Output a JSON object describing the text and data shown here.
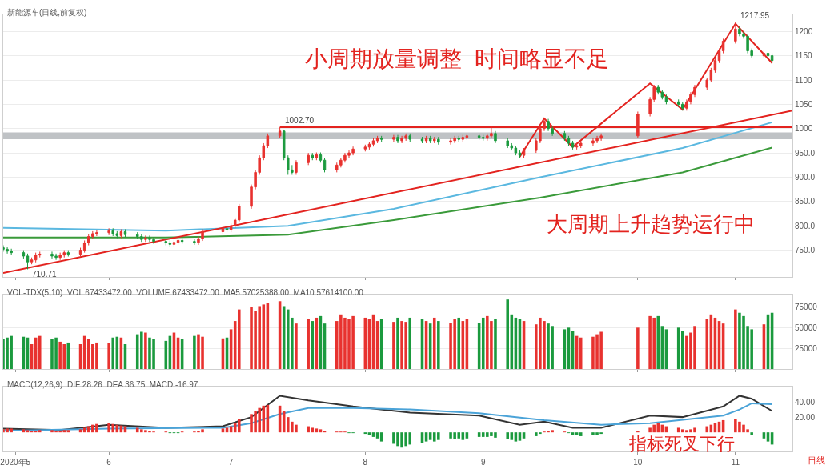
{
  "chart_data": [
    {
      "type": "candlestick",
      "title": "新能源车(日线,前复权)",
      "x": [
        "2020-05-06",
        "2020-05-07",
        "2020-05-08",
        "2020-05-11",
        "2020-05-12",
        "2020-05-13",
        "2020-05-14",
        "2020-05-15",
        "2020-05-18",
        "2020-05-19",
        "2020-05-20",
        "2020-05-21",
        "2020-05-22",
        "2020-05-25",
        "2020-05-26",
        "2020-05-27",
        "2020-05-28",
        "2020-05-29",
        "2020-06-01",
        "2020-06-02",
        "2020-06-03",
        "2020-06-04",
        "2020-06-05",
        "2020-06-08",
        "2020-06-09",
        "2020-06-10",
        "2020-06-11",
        "2020-06-12",
        "2020-06-15",
        "2020-06-16",
        "2020-06-17",
        "2020-06-18",
        "2020-06-19",
        "2020-06-22",
        "2020-06-23",
        "2020-06-24",
        "2020-06-29",
        "2020-06-30",
        "2020-07-01",
        "2020-07-02",
        "2020-07-03",
        "2020-07-06",
        "2020-07-07",
        "2020-07-08",
        "2020-07-09",
        "2020-07-10",
        "2020-07-13",
        "2020-07-14",
        "2020-07-15",
        "2020-07-16",
        "2020-07-17",
        "2020-07-20",
        "2020-07-21",
        "2020-07-22",
        "2020-07-23",
        "2020-07-24",
        "2020-07-27",
        "2020-07-28",
        "2020-07-29",
        "2020-07-30",
        "2020-07-31",
        "2020-08-03",
        "2020-08-04",
        "2020-08-05",
        "2020-08-06",
        "2020-08-07",
        "2020-08-10",
        "2020-08-11",
        "2020-08-12",
        "2020-08-13",
        "2020-08-14",
        "2020-08-17",
        "2020-08-18",
        "2020-08-19",
        "2020-08-20",
        "2020-08-21",
        "2020-08-24",
        "2020-08-25",
        "2020-08-26",
        "2020-08-27",
        "2020-08-28",
        "2020-08-31",
        "2020-09-01",
        "2020-09-02",
        "2020-09-03",
        "2020-09-04",
        "2020-09-07",
        "2020-09-08",
        "2020-09-09",
        "2020-09-10",
        "2020-09-11",
        "2020-09-14",
        "2020-09-15",
        "2020-09-16",
        "2020-09-17",
        "2020-09-18",
        "2020-09-21",
        "2020-09-22",
        "2020-09-23",
        "2020-09-24",
        "2020-09-25",
        "2020-09-28",
        "2020-09-29",
        "2020-09-30",
        "2020-10-09",
        "2020-10-12",
        "2020-10-13",
        "2020-10-14",
        "2020-10-15",
        "2020-10-16",
        "2020-10-19",
        "2020-10-20",
        "2020-10-21",
        "2020-10-22",
        "2020-10-23",
        "2020-10-26",
        "2020-10-27",
        "2020-10-28",
        "2020-10-29",
        "2020-10-30",
        "2020-11-02",
        "2020-11-03",
        "2020-11-04",
        "2020-11-05",
        "2020-11-06",
        "2020-11-09",
        "2020-11-10",
        "2020-11-11"
      ],
      "ohlc": [
        [
          755,
          760,
          747,
          752
        ],
        [
          752,
          757,
          743,
          748
        ],
        [
          748,
          753,
          740,
          745
        ],
        [
          745,
          750,
          733,
          738
        ],
        [
          738,
          743,
          710.71,
          726
        ],
        [
          726,
          735,
          721,
          730
        ],
        [
          730,
          745,
          725,
          740
        ],
        [
          740,
          747,
          735,
          742
        ],
        [
          742,
          747,
          733,
          738
        ],
        [
          738,
          743,
          730,
          735
        ],
        [
          735,
          745,
          730,
          740
        ],
        [
          740,
          750,
          735,
          745
        ],
        [
          745,
          750,
          737,
          742
        ],
        [
          742,
          755,
          737,
          750
        ],
        [
          750,
          770,
          745,
          765
        ],
        [
          765,
          783,
          760,
          778
        ],
        [
          778,
          789,
          773,
          784
        ],
        [
          784,
          791,
          779,
          786
        ],
        [
          786,
          795,
          781,
          790
        ],
        [
          790,
          795,
          779,
          784
        ],
        [
          784,
          789,
          775,
          780
        ],
        [
          780,
          793,
          775,
          788
        ],
        [
          788,
          793,
          777,
          782
        ],
        [
          782,
          787,
          773,
          778
        ],
        [
          778,
          783,
          767,
          772
        ],
        [
          772,
          780,
          767,
          775
        ],
        [
          775,
          780,
          767,
          772
        ],
        [
          772,
          777,
          763,
          768
        ],
        [
          768,
          773,
          760,
          765
        ],
        [
          765,
          770,
          757,
          762
        ],
        [
          762,
          771,
          757,
          766
        ],
        [
          766,
          775,
          761,
          770
        ],
        [
          770,
          775,
          763,
          768
        ],
        [
          768,
          773,
          761,
          766
        ],
        [
          766,
          779,
          761,
          774
        ],
        [
          774,
          793,
          769,
          788
        ],
        [
          788,
          799,
          783,
          794
        ],
        [
          794,
          799,
          787,
          792
        ],
        [
          792,
          805,
          787,
          800
        ],
        [
          800,
          817,
          795,
          812
        ],
        [
          812,
          845,
          807,
          840
        ],
        [
          840,
          885,
          835,
          880
        ],
        [
          880,
          915,
          875,
          910
        ],
        [
          910,
          945,
          905,
          940
        ],
        [
          940,
          970,
          935,
          965
        ],
        [
          965,
          990,
          960,
          985
        ],
        [
          985,
          1002.7,
          980,
          995
        ],
        [
          995,
          998,
          935,
          940
        ],
        [
          940,
          945,
          905,
          915
        ],
        [
          915,
          925,
          905,
          910
        ],
        [
          910,
          935,
          905,
          930
        ],
        [
          930,
          950,
          925,
          945
        ],
        [
          945,
          950,
          935,
          940
        ],
        [
          940,
          951,
          935,
          946
        ],
        [
          946,
          951,
          930,
          935
        ],
        [
          935,
          940,
          910,
          915
        ],
        [
          915,
          930,
          910,
          925
        ],
        [
          925,
          940,
          920,
          935
        ],
        [
          935,
          950,
          930,
          945
        ],
        [
          945,
          955,
          940,
          950
        ],
        [
          950,
          963,
          945,
          958
        ],
        [
          958,
          967,
          953,
          962
        ],
        [
          962,
          973,
          957,
          968
        ],
        [
          968,
          980,
          963,
          975
        ],
        [
          975,
          985,
          970,
          980
        ],
        [
          980,
          985,
          973,
          978
        ],
        [
          978,
          987,
          973,
          982
        ],
        [
          982,
          987,
          970,
          975
        ],
        [
          975,
          985,
          970,
          980
        ],
        [
          980,
          990,
          975,
          985
        ],
        [
          985,
          990,
          973,
          978
        ],
        [
          978,
          983,
          970,
          975
        ],
        [
          975,
          985,
          970,
          980
        ],
        [
          980,
          985,
          970,
          975
        ],
        [
          975,
          983,
          970,
          978
        ],
        [
          978,
          983,
          967,
          972
        ],
        [
          972,
          980,
          967,
          975
        ],
        [
          975,
          985,
          970,
          980
        ],
        [
          980,
          985,
          973,
          978
        ],
        [
          978,
          987,
          973,
          982
        ],
        [
          982,
          990,
          977,
          985
        ],
        [
          985,
          990,
          977,
          982
        ],
        [
          982,
          987,
          975,
          980
        ],
        [
          980,
          990,
          975,
          985
        ],
        [
          985,
          1005,
          980,
          990
        ],
        [
          990,
          995,
          970,
          975
        ],
        [
          975,
          980,
          960,
          965
        ],
        [
          965,
          970,
          955,
          960
        ],
        [
          960,
          965,
          945,
          950
        ],
        [
          950,
          955,
          940,
          945
        ],
        [
          945,
          960,
          940,
          955
        ],
        [
          955,
          980,
          950,
          975
        ],
        [
          975,
          1005,
          970,
          1000
        ],
        [
          1000,
          1020,
          995,
          1015
        ],
        [
          1015,
          1020,
          995,
          1000
        ],
        [
          1000,
          1005,
          985,
          990
        ],
        [
          990,
          995,
          975,
          980
        ],
        [
          980,
          985,
          965,
          970
        ],
        [
          970,
          975,
          957,
          962
        ],
        [
          962,
          970,
          957,
          965
        ],
        [
          965,
          975,
          960,
          970
        ],
        [
          970,
          980,
          965,
          975
        ],
        [
          975,
          985,
          970,
          980
        ],
        [
          980,
          990,
          975,
          985
        ],
        [
          985,
          1035,
          980,
          1030
        ],
        [
          1030,
          1065,
          1025,
          1060
        ],
        [
          1060,
          1090,
          1055,
          1085
        ],
        [
          1085,
          1090,
          1070,
          1075
        ],
        [
          1075,
          1080,
          1060,
          1065
        ],
        [
          1065,
          1070,
          1050,
          1055
        ],
        [
          1055,
          1060,
          1045,
          1050
        ],
        [
          1050,
          1055,
          1037,
          1042
        ],
        [
          1042,
          1060,
          1037,
          1055
        ],
        [
          1055,
          1075,
          1050,
          1070
        ],
        [
          1070,
          1090,
          1065,
          1085
        ],
        [
          1085,
          1105,
          1080,
          1100
        ],
        [
          1100,
          1125,
          1095,
          1120
        ],
        [
          1120,
          1145,
          1115,
          1140
        ],
        [
          1140,
          1165,
          1135,
          1160
        ],
        [
          1160,
          1185,
          1155,
          1180
        ],
        [
          1180,
          1217.95,
          1175,
          1205
        ],
        [
          1205,
          1210,
          1190,
          1195
        ],
        [
          1195,
          1200,
          1185,
          1190
        ],
        [
          1190,
          1195,
          1155,
          1160
        ],
        [
          1160,
          1165,
          1145,
          1150
        ],
        [
          1150,
          1160,
          1145,
          1155
        ],
        [
          1155,
          1160,
          1145,
          1150
        ],
        [
          1150,
          1155,
          1135,
          1140
        ]
      ],
      "colors": [
        "#1b9a3e",
        "#1b9a3e",
        "#1b9a3e",
        "#1b9a3e",
        "#1b9a3e",
        "#e8322f",
        "#e8322f",
        "#e8322f",
        "#1b9a3e",
        "#1b9a3e",
        "#e8322f",
        "#e8322f",
        "#1b9a3e",
        "#e8322f",
        "#e8322f",
        "#e8322f",
        "#e8322f",
        "#e8322f",
        "#e8322f",
        "#1b9a3e",
        "#1b9a3e",
        "#e8322f",
        "#1b9a3e",
        "#1b9a3e",
        "#1b9a3e",
        "#e8322f",
        "#1b9a3e",
        "#1b9a3e",
        "#1b9a3e",
        "#1b9a3e",
        "#e8322f",
        "#e8322f",
        "#1b9a3e",
        "#1b9a3e",
        "#e8322f",
        "#e8322f",
        "#e8322f",
        "#1b9a3e",
        "#e8322f",
        "#e8322f",
        "#e8322f",
        "#e8322f",
        "#e8322f",
        "#e8322f",
        "#e8322f",
        "#e8322f",
        "#e8322f",
        "#1b9a3e",
        "#1b9a3e",
        "#1b9a3e",
        "#e8322f",
        "#e8322f",
        "#1b9a3e",
        "#e8322f",
        "#1b9a3e",
        "#1b9a3e",
        "#e8322f",
        "#e8322f",
        "#e8322f",
        "#e8322f",
        "#e8322f",
        "#e8322f",
        "#e8322f",
        "#e8322f",
        "#e8322f",
        "#1b9a3e",
        "#e8322f",
        "#1b9a3e",
        "#e8322f",
        "#e8322f",
        "#1b9a3e",
        "#1b9a3e",
        "#e8322f",
        "#1b9a3e",
        "#e8322f",
        "#1b9a3e",
        "#e8322f",
        "#e8322f",
        "#1b9a3e",
        "#e8322f",
        "#e8322f",
        "#1b9a3e",
        "#1b9a3e",
        "#e8322f",
        "#e8322f",
        "#1b9a3e",
        "#1b9a3e",
        "#1b9a3e",
        "#1b9a3e",
        "#1b9a3e",
        "#e8322f",
        "#e8322f",
        "#e8322f",
        "#e8322f",
        "#1b9a3e",
        "#1b9a3e",
        "#1b9a3e",
        "#1b9a3e",
        "#1b9a3e",
        "#e8322f",
        "#e8322f",
        "#e8322f",
        "#e8322f",
        "#e8322f",
        "#e8322f",
        "#e8322f",
        "#e8322f",
        "#1b9a3e",
        "#1b9a3e",
        "#1b9a3e",
        "#1b9a3e",
        "#1b9a3e",
        "#e8322f",
        "#e8322f",
        "#e8322f",
        "#e8322f",
        "#e8322f",
        "#e8322f",
        "#e8322f",
        "#e8322f",
        "#e8322f",
        "#1b9a3e",
        "#1b9a3e",
        "#1b9a3e",
        "#1b9a3e",
        "#e8322f",
        "#1b9a3e",
        "#1b9a3e"
      ],
      "series": [
        {
          "type": "line",
          "color": "#3a9a3a",
          "x": [
            "2020-05-06",
            "2020-06-15",
            "2020-07-15",
            "2020-08-10",
            "2020-09-15",
            "2020-10-20",
            "2020-11-11"
          ],
          "values": [
            776,
            776,
            782,
            812,
            858,
            910,
            961
          ]
        },
        {
          "type": "line",
          "color": "#5bb8e0",
          "x": [
            "2020-05-06",
            "2020-06-15",
            "2020-07-15",
            "2020-08-10",
            "2020-09-15",
            "2020-10-20",
            "2020-11-11"
          ],
          "values": [
            796,
            790,
            800,
            835,
            900,
            960,
            1013
          ]
        },
        {
          "type": "line",
          "color": "#e3231f",
          "x": [
            "2020-05-06",
            "2020-11-16"
          ],
          "values": [
            703,
            1037
          ]
        },
        {
          "type": "line",
          "color": "#e3231f",
          "x": [
            "2020-07-13",
            "2020-11-16"
          ],
          "values": [
            1002.7,
            1002.7
          ]
        },
        {
          "type": "line",
          "color": "#e3231f",
          "x": [
            "2020-09-10",
            "2020-09-16",
            "2020-09-23",
            "2020-10-12",
            "2020-10-20",
            "2020-11-02",
            "2020-11-11"
          ],
          "values": [
            942,
            1021,
            962,
            1093,
            1039,
            1216,
            1135
          ]
        }
      ],
      "bands": [
        {
          "axis": "y",
          "from": 978,
          "to": 992,
          "color": "#8a8f96"
        }
      ],
      "annotations": [
        "小周期放量调整  时间略显不足",
        "大周期上升趋势运行中",
        {
          "text": "1002.70",
          "x": "2020-07-13",
          "y": 1002.7
        },
        {
          "text": "1217.95",
          "x": "2020-11-02",
          "y": 1217.95
        },
        {
          "text": "710.71",
          "x": "2020-05-12",
          "y": 710.71
        }
      ],
      "xlim": [
        "2020-05-06",
        "2020-11-16"
      ],
      "xticks": [
        {
          "value": "2020-05-09",
          "label": null
        },
        {
          "value": "2020-06-01",
          "label": null
        },
        {
          "value": "2020-07-01",
          "label": null
        },
        {
          "value": "2020-08-03",
          "label": null
        },
        {
          "value": "2020-09-01",
          "label": null
        },
        {
          "value": "2020-10-09",
          "label": null
        },
        {
          "value": "2020-11-02",
          "label": null
        }
      ],
      "ylim": [
        695,
        1235
      ],
      "yticks": [
        {
          "value": 750,
          "label": "750.0"
        },
        {
          "value": 800,
          "label": "800.0"
        },
        {
          "value": 850,
          "label": "850.0"
        },
        {
          "value": 900,
          "label": "900.0"
        },
        {
          "value": 950,
          "label": "950.0"
        },
        1000,
        1050,
        1100,
        1150,
        1200
      ],
      "tick_labels": "y",
      "grid": "y"
    },
    {
      "type": "bar",
      "title": "VOL-TDX(5,10)  VOL 67433472.00  VOLUME 67433472.00  MA5 57025388.00  MA10 57614100.00",
      "x": [
        "2020-05-06",
        "2020-05-07",
        "2020-05-08",
        "2020-05-11",
        "2020-05-12",
        "2020-05-13",
        "2020-05-14",
        "2020-05-15",
        "2020-05-18",
        "2020-05-19",
        "2020-05-20",
        "2020-05-21",
        "2020-05-22",
        "2020-05-25",
        "2020-05-26",
        "2020-05-27",
        "2020-05-28",
        "2020-05-29",
        "2020-06-01",
        "2020-06-02",
        "2020-06-03",
        "2020-06-04",
        "2020-06-05",
        "2020-06-08",
        "2020-06-09",
        "2020-06-10",
        "2020-06-11",
        "2020-06-12",
        "2020-06-15",
        "2020-06-16",
        "2020-06-17",
        "2020-06-18",
        "2020-06-19",
        "2020-06-22",
        "2020-06-23",
        "2020-06-24",
        "2020-06-29",
        "2020-06-30",
        "2020-07-01",
        "2020-07-02",
        "2020-07-03",
        "2020-07-06",
        "2020-07-07",
        "2020-07-08",
        "2020-07-09",
        "2020-07-10",
        "2020-07-13",
        "2020-07-14",
        "2020-07-15",
        "2020-07-16",
        "2020-07-17",
        "2020-07-20",
        "2020-07-21",
        "2020-07-22",
        "2020-07-23",
        "2020-07-24",
        "2020-07-27",
        "2020-07-28",
        "2020-07-29",
        "2020-07-30",
        "2020-07-31",
        "2020-08-03",
        "2020-08-04",
        "2020-08-05",
        "2020-08-06",
        "2020-08-07",
        "2020-08-10",
        "2020-08-11",
        "2020-08-12",
        "2020-08-13",
        "2020-08-14",
        "2020-08-17",
        "2020-08-18",
        "2020-08-19",
        "2020-08-20",
        "2020-08-21",
        "2020-08-24",
        "2020-08-25",
        "2020-08-26",
        "2020-08-27",
        "2020-08-28",
        "2020-08-31",
        "2020-09-01",
        "2020-09-02",
        "2020-09-03",
        "2020-09-04",
        "2020-09-07",
        "2020-09-08",
        "2020-09-09",
        "2020-09-10",
        "2020-09-11",
        "2020-09-14",
        "2020-09-15",
        "2020-09-16",
        "2020-09-17",
        "2020-09-18",
        "2020-09-21",
        "2020-09-22",
        "2020-09-23",
        "2020-09-24",
        "2020-09-25",
        "2020-09-28",
        "2020-09-29",
        "2020-09-30",
        "2020-10-09",
        "2020-10-12",
        "2020-10-13",
        "2020-10-14",
        "2020-10-15",
        "2020-10-16",
        "2020-10-19",
        "2020-10-20",
        "2020-10-21",
        "2020-10-22",
        "2020-10-23",
        "2020-10-26",
        "2020-10-27",
        "2020-10-28",
        "2020-10-29",
        "2020-10-30",
        "2020-11-02",
        "2020-11-03",
        "2020-11-04",
        "2020-11-05",
        "2020-11-06",
        "2020-11-09",
        "2020-11-10",
        "2020-11-11"
      ],
      "values": [
        36000,
        38000,
        40000,
        39000,
        38000,
        30000,
        38000,
        40000,
        36000,
        38000,
        33000,
        30000,
        32000,
        30000,
        40000,
        36000,
        30000,
        32000,
        31000,
        38000,
        39000,
        38000,
        30000,
        42000,
        45000,
        44000,
        38000,
        36000,
        34000,
        40000,
        44000,
        38000,
        36000,
        40000,
        42000,
        39000,
        37000,
        38000,
        48000,
        58000,
        72000,
        75000,
        70000,
        76000,
        78000,
        80000,
        82000,
        76000,
        72000,
        62000,
        55000,
        60000,
        58000,
        62000,
        64000,
        55000,
        58000,
        66000,
        62000,
        60000,
        64000,
        62000,
        60000,
        66000,
        58000,
        60000,
        57000,
        62000,
        58000,
        57000,
        62000,
        60000,
        58000,
        55000,
        62000,
        58000,
        56000,
        60000,
        62000,
        58000,
        60000,
        56000,
        62000,
        64000,
        58000,
        60000,
        84000,
        66000,
        62000,
        60000,
        58000,
        54000,
        62000,
        58000,
        55000,
        52000,
        48000,
        50000,
        46000,
        40000,
        38000,
        39000,
        42000,
        45000,
        50000,
        64000,
        62000,
        64000,
        52000,
        48000,
        50000,
        46000,
        40000,
        44000,
        52000,
        60000,
        66000,
        62000,
        58000,
        55000,
        72000,
        68000,
        64000,
        52000,
        48000,
        54000,
        66000,
        68000
      ],
      "colors": [
        "#1b9a3e",
        "#1b9a3e",
        "#1b9a3e",
        "#1b9a3e",
        "#1b9a3e",
        "#e8322f",
        "#e8322f",
        "#e8322f",
        "#1b9a3e",
        "#1b9a3e",
        "#e8322f",
        "#e8322f",
        "#1b9a3e",
        "#e8322f",
        "#e8322f",
        "#e8322f",
        "#e8322f",
        "#e8322f",
        "#e8322f",
        "#1b9a3e",
        "#1b9a3e",
        "#e8322f",
        "#1b9a3e",
        "#1b9a3e",
        "#1b9a3e",
        "#e8322f",
        "#1b9a3e",
        "#1b9a3e",
        "#1b9a3e",
        "#1b9a3e",
        "#e8322f",
        "#e8322f",
        "#1b9a3e",
        "#1b9a3e",
        "#e8322f",
        "#e8322f",
        "#e8322f",
        "#1b9a3e",
        "#e8322f",
        "#e8322f",
        "#e8322f",
        "#e8322f",
        "#e8322f",
        "#e8322f",
        "#e8322f",
        "#e8322f",
        "#e8322f",
        "#1b9a3e",
        "#1b9a3e",
        "#1b9a3e",
        "#e8322f",
        "#e8322f",
        "#1b9a3e",
        "#e8322f",
        "#1b9a3e",
        "#1b9a3e",
        "#e8322f",
        "#e8322f",
        "#e8322f",
        "#e8322f",
        "#e8322f",
        "#e8322f",
        "#e8322f",
        "#e8322f",
        "#e8322f",
        "#1b9a3e",
        "#e8322f",
        "#1b9a3e",
        "#e8322f",
        "#e8322f",
        "#1b9a3e",
        "#1b9a3e",
        "#e8322f",
        "#1b9a3e",
        "#e8322f",
        "#1b9a3e",
        "#e8322f",
        "#e8322f",
        "#1b9a3e",
        "#e8322f",
        "#e8322f",
        "#1b9a3e",
        "#1b9a3e",
        "#e8322f",
        "#e8322f",
        "#1b9a3e",
        "#1b9a3e",
        "#1b9a3e",
        "#1b9a3e",
        "#1b9a3e",
        "#e8322f",
        "#e8322f",
        "#e8322f",
        "#e8322f",
        "#1b9a3e",
        "#1b9a3e",
        "#1b9a3e",
        "#1b9a3e",
        "#1b9a3e",
        "#e8322f",
        "#e8322f",
        "#e8322f",
        "#e8322f",
        "#e8322f",
        "#e8322f",
        "#e8322f",
        "#e8322f",
        "#1b9a3e",
        "#1b9a3e",
        "#1b9a3e",
        "#1b9a3e",
        "#1b9a3e",
        "#e8322f",
        "#e8322f",
        "#e8322f",
        "#e8322f",
        "#e8322f",
        "#e8322f",
        "#e8322f",
        "#e8322f",
        "#e8322f",
        "#1b9a3e",
        "#1b9a3e",
        "#1b9a3e",
        "#1b9a3e",
        "#e8322f",
        "#1b9a3e",
        "#1b9a3e"
      ],
      "xlim": [
        "2020-05-06",
        "2020-11-16"
      ],
      "xticks": [
        {
          "value": "2020-05-09",
          "label": null
        },
        {
          "value": "2020-06-01",
          "label": null
        },
        {
          "value": "2020-07-01",
          "label": null
        },
        {
          "value": "2020-08-03",
          "label": null
        },
        {
          "value": "2020-09-01",
          "label": null
        },
        {
          "value": "2020-10-09",
          "label": null
        },
        {
          "value": "2020-11-02",
          "label": null
        }
      ],
      "ylim": [
        0,
        90000
      ],
      "yticks": [
        25000,
        50000,
        75000
      ],
      "tick_labels": "y",
      "grid": "y"
    },
    {
      "type": "bar",
      "title": "MACD(12,26,9)  DIF 28.26  DEA 36.75  MACD -16.97",
      "x": [
        "2020-05-06",
        "2020-05-07",
        "2020-05-08",
        "2020-05-11",
        "2020-05-12",
        "2020-05-13",
        "2020-05-14",
        "2020-05-15",
        "2020-05-18",
        "2020-05-19",
        "2020-05-20",
        "2020-05-21",
        "2020-05-22",
        "2020-05-25",
        "2020-05-26",
        "2020-05-27",
        "2020-05-28",
        "2020-05-29",
        "2020-06-01",
        "2020-06-02",
        "2020-06-03",
        "2020-06-04",
        "2020-06-05",
        "2020-06-08",
        "2020-06-09",
        "2020-06-10",
        "2020-06-11",
        "2020-06-12",
        "2020-06-15",
        "2020-06-16",
        "2020-06-17",
        "2020-06-18",
        "2020-06-19",
        "2020-06-22",
        "2020-06-23",
        "2020-06-24",
        "2020-06-29",
        "2020-06-30",
        "2020-07-01",
        "2020-07-02",
        "2020-07-03",
        "2020-07-06",
        "2020-07-07",
        "2020-07-08",
        "2020-07-09",
        "2020-07-10",
        "2020-07-13",
        "2020-07-14",
        "2020-07-15",
        "2020-07-16",
        "2020-07-17",
        "2020-07-20",
        "2020-07-21",
        "2020-07-22",
        "2020-07-23",
        "2020-07-24",
        "2020-07-27",
        "2020-07-28",
        "2020-07-29",
        "2020-07-30",
        "2020-07-31",
        "2020-08-03",
        "2020-08-04",
        "2020-08-05",
        "2020-08-06",
        "2020-08-07",
        "2020-08-10",
        "2020-08-11",
        "2020-08-12",
        "2020-08-13",
        "2020-08-14",
        "2020-08-17",
        "2020-08-18",
        "2020-08-19",
        "2020-08-20",
        "2020-08-21",
        "2020-08-24",
        "2020-08-25",
        "2020-08-26",
        "2020-08-27",
        "2020-08-28",
        "2020-08-31",
        "2020-09-01",
        "2020-09-02",
        "2020-09-03",
        "2020-09-04",
        "2020-09-07",
        "2020-09-08",
        "2020-09-09",
        "2020-09-10",
        "2020-09-11",
        "2020-09-14",
        "2020-09-15",
        "2020-09-16",
        "2020-09-17",
        "2020-09-18",
        "2020-09-21",
        "2020-09-22",
        "2020-09-23",
        "2020-09-24",
        "2020-09-25",
        "2020-09-28",
        "2020-09-29",
        "2020-09-30",
        "2020-10-09",
        "2020-10-12",
        "2020-10-13",
        "2020-10-14",
        "2020-10-15",
        "2020-10-16",
        "2020-10-19",
        "2020-10-20",
        "2020-10-21",
        "2020-10-22",
        "2020-10-23",
        "2020-10-26",
        "2020-10-27",
        "2020-10-28",
        "2020-10-29",
        "2020-10-30",
        "2020-11-02",
        "2020-11-03",
        "2020-11-04",
        "2020-11-05",
        "2020-11-06",
        "2020-11-09",
        "2020-11-10",
        "2020-11-11"
      ],
      "values": [
        4,
        5,
        5,
        4,
        3,
        2,
        2,
        3,
        3,
        2,
        2,
        3,
        3,
        4,
        6,
        8,
        10,
        11,
        12,
        11,
        10,
        9,
        8,
        6,
        4,
        3,
        2,
        1,
        1,
        -1,
        -1,
        -1,
        1,
        1,
        2,
        4,
        5,
        6,
        8,
        12,
        18,
        24,
        28,
        32,
        35,
        36,
        35,
        28,
        20,
        14,
        10,
        8,
        6,
        5,
        4,
        2,
        1,
        1,
        1,
        -1,
        -1,
        -2,
        -4,
        -6,
        -8,
        -12,
        -15,
        -18,
        -20,
        -18,
        -16,
        -14,
        -12,
        -10,
        -12,
        -10,
        -8,
        -9,
        -8,
        -10,
        -8,
        -6,
        -6,
        -6,
        -5,
        -7,
        -9,
        -10,
        -12,
        -11,
        -8,
        -5,
        -2,
        1,
        2,
        3,
        1,
        -1,
        -3,
        -4,
        -5,
        -4,
        -3,
        -2,
        2,
        6,
        10,
        12,
        10,
        8,
        6,
        4,
        3,
        4,
        6,
        8,
        10,
        12,
        14,
        16,
        18,
        14,
        10,
        4,
        -4,
        -8,
        -12,
        -16
      ],
      "colors": [
        "#e8322f",
        "#e8322f",
        "#e8322f",
        "#e8322f",
        "#e8322f",
        "#e8322f",
        "#e8322f",
        "#e8322f",
        "#e8322f",
        "#e8322f",
        "#e8322f",
        "#e8322f",
        "#e8322f",
        "#e8322f",
        "#e8322f",
        "#e8322f",
        "#e8322f",
        "#e8322f",
        "#e8322f",
        "#e8322f",
        "#e8322f",
        "#e8322f",
        "#e8322f",
        "#e8322f",
        "#e8322f",
        "#e8322f",
        "#e8322f",
        "#e8322f",
        "#e8322f",
        "#1b9a3e",
        "#1b9a3e",
        "#1b9a3e",
        "#e8322f",
        "#e8322f",
        "#e8322f",
        "#e8322f",
        "#e8322f",
        "#e8322f",
        "#e8322f",
        "#e8322f",
        "#e8322f",
        "#e8322f",
        "#e8322f",
        "#e8322f",
        "#e8322f",
        "#e8322f",
        "#e8322f",
        "#e8322f",
        "#e8322f",
        "#e8322f",
        "#e8322f",
        "#e8322f",
        "#e8322f",
        "#e8322f",
        "#e8322f",
        "#e8322f",
        "#e8322f",
        "#e8322f",
        "#e8322f",
        "#1b9a3e",
        "#1b9a3e",
        "#1b9a3e",
        "#1b9a3e",
        "#1b9a3e",
        "#1b9a3e",
        "#1b9a3e",
        "#1b9a3e",
        "#1b9a3e",
        "#1b9a3e",
        "#1b9a3e",
        "#1b9a3e",
        "#1b9a3e",
        "#1b9a3e",
        "#1b9a3e",
        "#1b9a3e",
        "#1b9a3e",
        "#1b9a3e",
        "#1b9a3e",
        "#1b9a3e",
        "#1b9a3e",
        "#1b9a3e",
        "#1b9a3e",
        "#1b9a3e",
        "#1b9a3e",
        "#1b9a3e",
        "#1b9a3e",
        "#1b9a3e",
        "#1b9a3e",
        "#1b9a3e",
        "#1b9a3e",
        "#1b9a3e",
        "#1b9a3e",
        "#1b9a3e",
        "#e8322f",
        "#e8322f",
        "#e8322f",
        "#e8322f",
        "#1b9a3e",
        "#1b9a3e",
        "#1b9a3e",
        "#1b9a3e",
        "#1b9a3e",
        "#1b9a3e",
        "#1b9a3e",
        "#e8322f",
        "#e8322f",
        "#e8322f",
        "#e8322f",
        "#e8322f",
        "#e8322f",
        "#e8322f",
        "#e8322f",
        "#e8322f",
        "#e8322f",
        "#e8322f",
        "#e8322f",
        "#e8322f",
        "#e8322f",
        "#e8322f",
        "#e8322f",
        "#e8322f",
        "#e8322f",
        "#e8322f",
        "#e8322f",
        "#1b9a3e",
        "#1b9a3e",
        "#1b9a3e",
        "#1b9a3e"
      ],
      "series": [
        {
          "type": "line",
          "color": "#333333",
          "x": [
            "2020-05-06",
            "2020-05-20",
            "2020-06-01",
            "2020-06-15",
            "2020-06-29",
            "2020-07-06",
            "2020-07-13",
            "2020-07-20",
            "2020-07-31",
            "2020-08-14",
            "2020-08-31",
            "2020-09-10",
            "2020-09-16",
            "2020-09-23",
            "2020-09-30",
            "2020-10-12",
            "2020-10-20",
            "2020-10-30",
            "2020-11-03",
            "2020-11-06",
            "2020-11-11"
          ],
          "values": [
            5,
            3,
            10,
            6,
            8,
            20,
            48,
            42,
            34,
            26,
            22,
            10,
            14,
            6,
            6,
            22,
            20,
            34,
            48,
            44,
            28
          ]
        },
        {
          "type": "line",
          "color": "#4aa3d8",
          "x": [
            "2020-05-06",
            "2020-06-01",
            "2020-06-29",
            "2020-07-06",
            "2020-07-13",
            "2020-07-20",
            "2020-07-31",
            "2020-08-14",
            "2020-08-31",
            "2020-09-16",
            "2020-09-30",
            "2020-10-12",
            "2020-10-30",
            "2020-11-03",
            "2020-11-06",
            "2020-11-11"
          ],
          "values": [
            2,
            5,
            6,
            12,
            24,
            32,
            32,
            30,
            25,
            16,
            10,
            12,
            22,
            30,
            38,
            37
          ]
        }
      ],
      "annotations": [
        "指标死叉下行",
        "日线"
      ],
      "xlim": [
        "2020-05-06",
        "2020-11-16"
      ],
      "xticks": [
        {
          "value": "2020-05-09",
          "label": "2020年5"
        },
        {
          "value": "2020-06-01",
          "label": "6"
        },
        {
          "value": "2020-07-01",
          "label": "7"
        },
        {
          "value": "2020-08-03",
          "label": "8"
        },
        {
          "value": "2020-09-01",
          "label": "9"
        },
        {
          "value": "2020-10-09",
          "label": "10"
        },
        {
          "value": "2020-11-02",
          "label": "11"
        }
      ],
      "ylim": [
        -25,
        60
      ],
      "yticks": [
        {
          "value": 20,
          "label": "20.00"
        },
        {
          "value": 40,
          "label": "40.00"
        }
      ]
    }
  ]
}
